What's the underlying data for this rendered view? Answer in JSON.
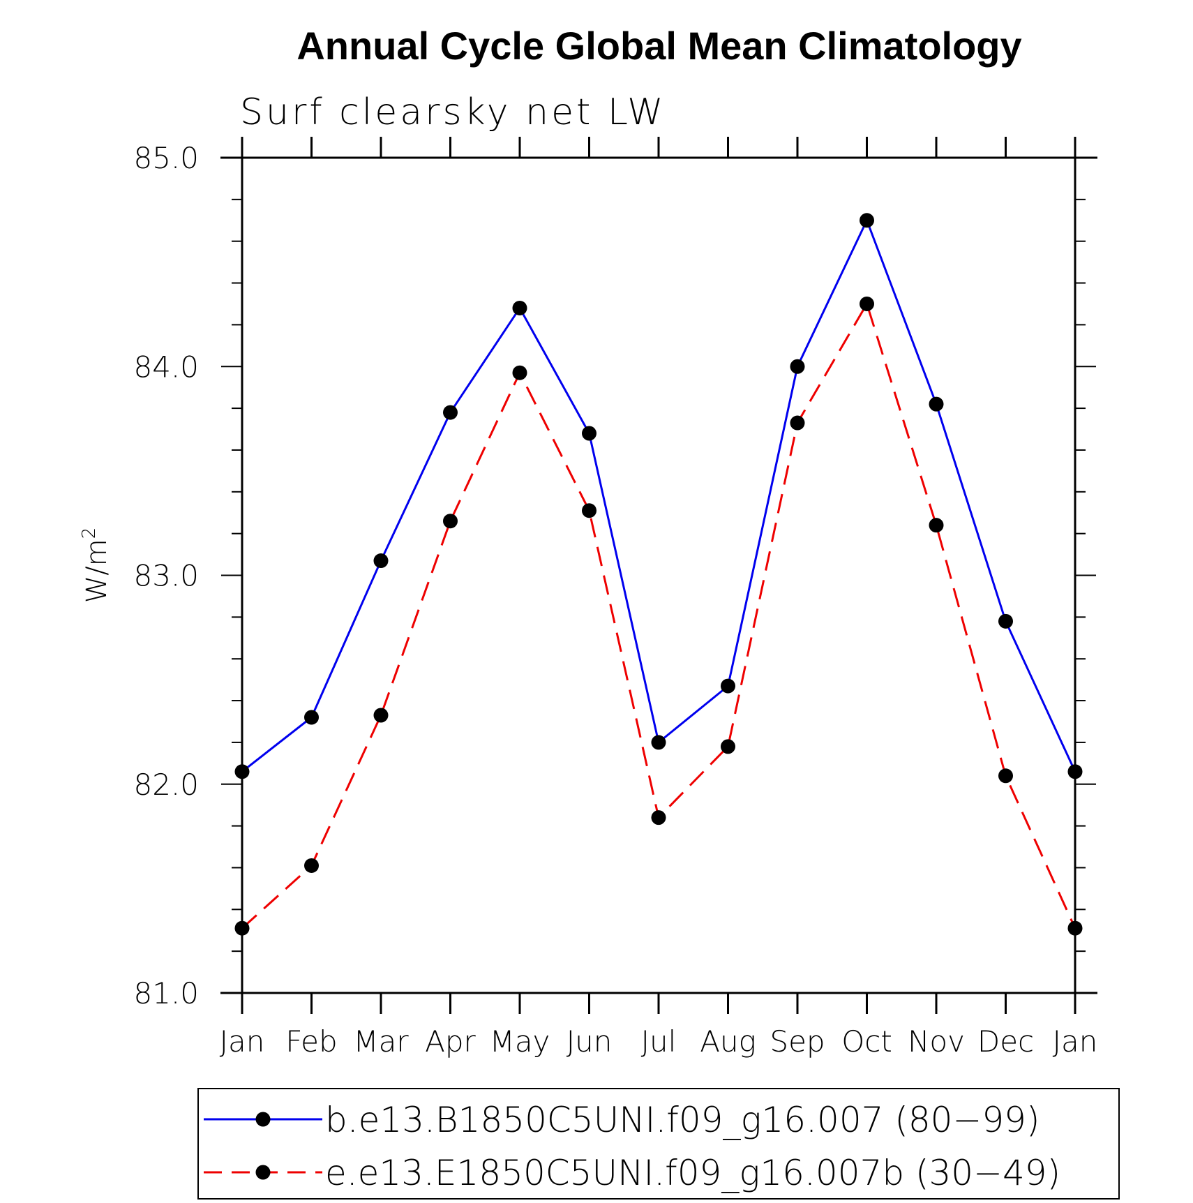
{
  "chart_data": {
    "type": "line",
    "title": "Annual Cycle Global Mean Climatology",
    "subtitle": "Surf clearsky net LW",
    "ylabel": "W/m",
    "ylabel_sup": "2",
    "xlabel": "",
    "categories": [
      "Jan",
      "Feb",
      "Mar",
      "Apr",
      "May",
      "Jun",
      "Jul",
      "Aug",
      "Sep",
      "Oct",
      "Nov",
      "Dec",
      "Jan"
    ],
    "ylim": [
      81.0,
      85.0
    ],
    "yticks": [
      "81.0",
      "82.0",
      "83.0",
      "84.0",
      "85.0"
    ],
    "series": [
      {
        "name": "b.e13.B1850C5UNI.f09_g16.007 (80−99)",
        "color": "#0000ee",
        "dash": "solid",
        "values": [
          82.06,
          82.32,
          83.07,
          83.78,
          84.28,
          83.68,
          82.2,
          82.47,
          84.0,
          84.7,
          83.82,
          82.78,
          82.06
        ]
      },
      {
        "name": "e.e13.E1850C5UNI.f09_g16.007b (30−49)",
        "color": "#ee0000",
        "dash": "dashed",
        "values": [
          81.31,
          81.61,
          82.33,
          83.26,
          83.97,
          83.31,
          81.84,
          82.18,
          83.73,
          84.3,
          83.24,
          82.04,
          81.31
        ]
      }
    ]
  }
}
